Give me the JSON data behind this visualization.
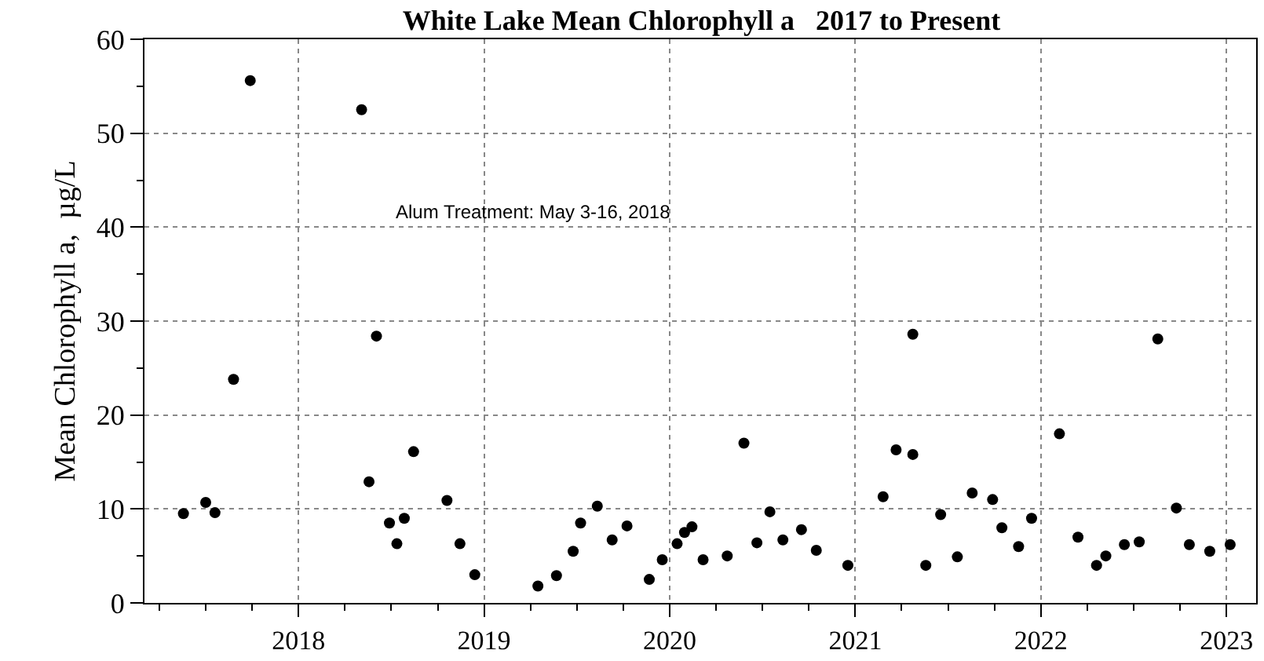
{
  "chart_data": {
    "type": "scatter",
    "title": "White Lake Mean Chlorophyll a   2017 to Present",
    "ylabel": "Mean Chlorophyll a,  µg/L",
    "annotations": [
      "Alum Treatment: May 3-16, 2018"
    ],
    "x": [
      2017.38,
      2017.5,
      2017.55,
      2017.65,
      2017.74,
      2018.34,
      2018.38,
      2018.42,
      2018.49,
      2018.53,
      2018.57,
      2018.62,
      2018.8,
      2018.87,
      2018.95,
      2019.29,
      2019.39,
      2019.48,
      2019.52,
      2019.61,
      2019.69,
      2019.77,
      2019.89,
      2019.96,
      2020.04,
      2020.08,
      2020.12,
      2020.18,
      2020.31,
      2020.4,
      2020.47,
      2020.54,
      2020.61,
      2020.71,
      2020.79,
      2020.96,
      2021.15,
      2021.22,
      2021.31,
      2021.31,
      2021.38,
      2021.46,
      2021.55,
      2021.63,
      2021.74,
      2021.79,
      2021.88,
      2021.95,
      2022.1,
      2022.2,
      2022.3,
      2022.35,
      2022.45,
      2022.53,
      2022.63,
      2022.73,
      2022.8,
      2022.91,
      2023.02
    ],
    "series": [
      {
        "color": "#000000",
        "values": [
          9.5,
          10.7,
          9.6,
          23.8,
          55.6,
          52.5,
          12.9,
          28.4,
          8.5,
          6.3,
          9.0,
          16.1,
          10.9,
          6.3,
          3.0,
          1.8,
          2.9,
          5.5,
          8.5,
          10.3,
          6.7,
          8.2,
          2.5,
          4.6,
          6.3,
          7.5,
          8.1,
          4.6,
          5.0,
          17.0,
          6.4,
          9.7,
          6.7,
          7.8,
          5.6,
          4.0,
          11.3,
          16.3,
          15.8,
          28.6,
          4.0,
          9.4,
          4.9,
          11.7,
          11.0,
          8.0,
          6.0,
          9.0,
          18.0,
          7.0,
          4.0,
          5.0,
          6.2,
          6.5,
          28.1,
          10.1,
          6.2,
          5.5,
          6.2
        ]
      }
    ],
    "xlim": [
      2017.17,
      2023.16
    ],
    "xticks": [
      2018,
      2019,
      2020,
      2021,
      2022,
      2023
    ],
    "ylim": [
      0,
      60
    ],
    "yticks": [
      0,
      10,
      20,
      30,
      40,
      50,
      60
    ],
    "grid": true,
    "marker": "circle"
  }
}
